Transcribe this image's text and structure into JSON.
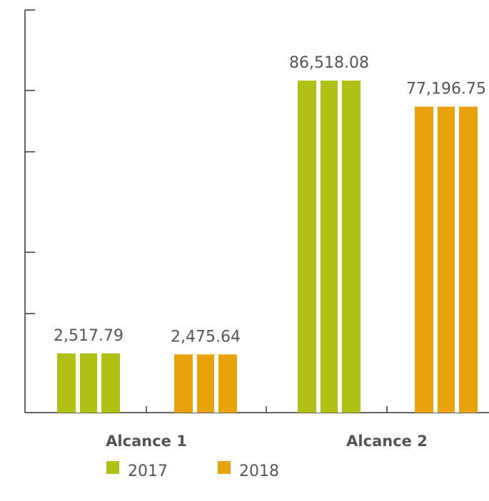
{
  "chart_data": {
    "type": "bar",
    "title": "",
    "xlabel": "",
    "ylabel": "",
    "categories": [
      "Alcance 1",
      "Alcance 2"
    ],
    "series": [
      {
        "name": "2017",
        "color": "#afc214",
        "values": [
          2517.79,
          86518.08
        ],
        "labels": [
          "2,517.79",
          "86,518.08"
        ]
      },
      {
        "name": "2018",
        "color": "#e8a20c",
        "values": [
          2475.64,
          77196.75
        ],
        "labels": [
          "2,475.64",
          "77,196.75"
        ]
      }
    ],
    "axis_break": true,
    "grid": false,
    "legend_position": "bottom"
  }
}
